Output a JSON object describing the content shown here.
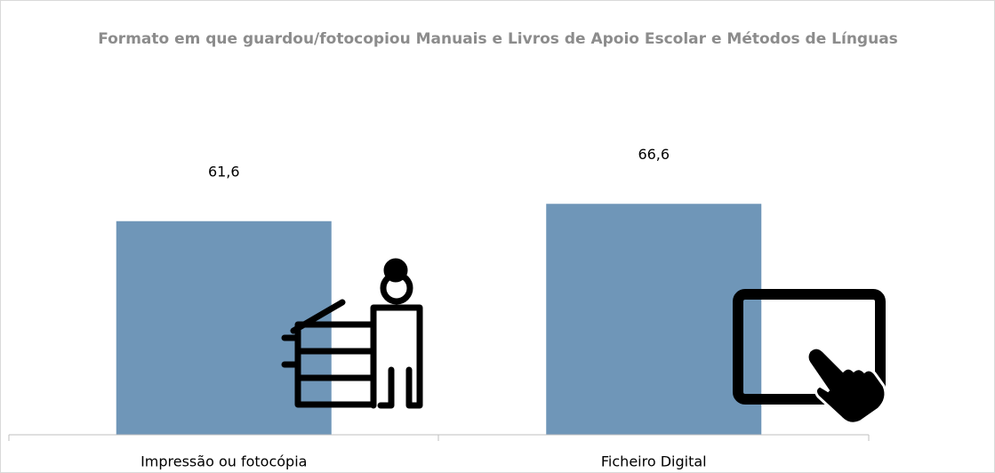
{
  "chart_data": {
    "type": "bar",
    "title": "Formato em que guardou/fotocopiou Manuais e Livros de Apoio Escolar e Métodos de Línguas",
    "categories": [
      "Impressão ou fotocópia",
      "Ficheiro Digital"
    ],
    "values": [
      61.6,
      66.6
    ],
    "value_labels": [
      "61,6",
      "66,6"
    ],
    "color": "#6f96b8"
  }
}
